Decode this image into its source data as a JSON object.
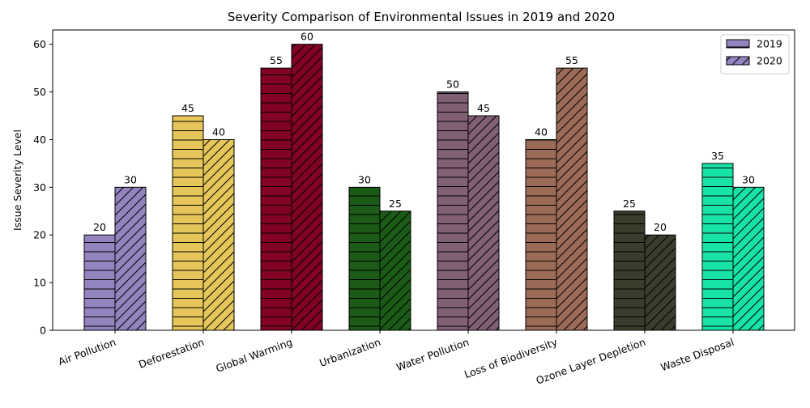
{
  "chart_data": {
    "type": "bar",
    "title": "Severity Comparison of Environmental Issues in 2019 and 2020",
    "xlabel": "",
    "ylabel": "Issue Severity Level",
    "ylim": [
      0,
      63
    ],
    "yticks": [
      0,
      10,
      20,
      30,
      40,
      50,
      60
    ],
    "grid": false,
    "legend_position": "top-right",
    "categories": [
      "Air Pollution",
      "Deforestation",
      "Global Warming",
      "Urbanization",
      "Water Pollution",
      "Loss of Biodiversity",
      "Ozone Layer Depletion",
      "Waste Disposal"
    ],
    "category_colors": [
      "#9384bf",
      "#e6c65a",
      "#810225",
      "#1c5a17",
      "#815f74",
      "#9c6b58",
      "#3c3c2c",
      "#18e3a6"
    ],
    "series": [
      {
        "name": "2019",
        "values": [
          20,
          45,
          55,
          30,
          50,
          40,
          25,
          35
        ],
        "hatch": "horizontal"
      },
      {
        "name": "2020",
        "values": [
          30,
          40,
          60,
          25,
          45,
          55,
          20,
          30
        ],
        "hatch": "diagonal"
      }
    ]
  }
}
